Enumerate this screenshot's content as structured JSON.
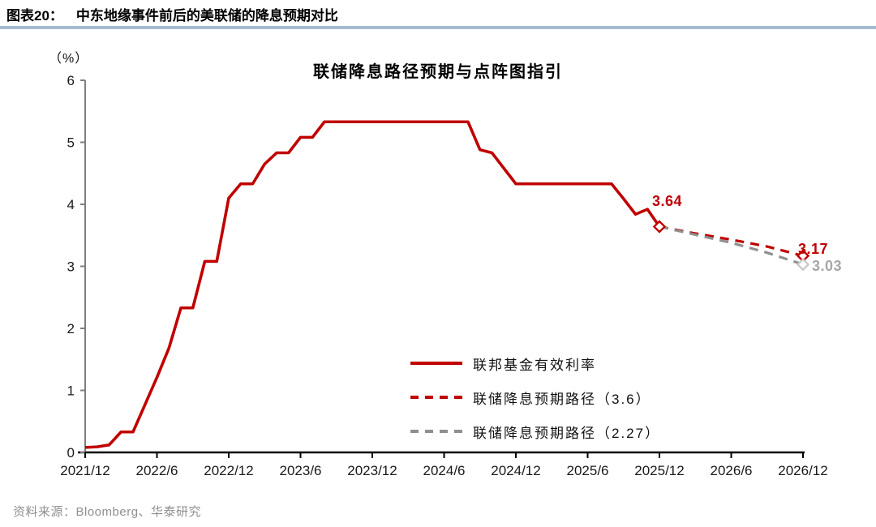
{
  "header": {
    "tag": "图表20：",
    "title": "中东地缘事件前后的美联储的降息预期对比"
  },
  "chart_data": {
    "type": "line",
    "title": "联储降息路径预期与点阵图指引",
    "y_unit": "（%）",
    "ylim": [
      0,
      6
    ],
    "y_ticks": [
      0,
      1,
      2,
      3,
      4,
      5,
      6
    ],
    "x_tick_months": [
      0,
      6,
      12,
      18,
      24,
      30,
      36,
      42,
      48,
      54,
      60
    ],
    "x_ticklabels": [
      "2021/12",
      "2022/6",
      "2022/12",
      "2023/6",
      "2023/12",
      "2024/6",
      "2024/12",
      "2025/6",
      "2025/12",
      "2026/6",
      "2026/12"
    ],
    "grid": false,
    "legend_position": "inside-bottom-right",
    "series": [
      {
        "name": "联邦基金有效利率",
        "color": "#C00000",
        "style": "solid",
        "points": [
          [
            0,
            0.08
          ],
          [
            1,
            0.09
          ],
          [
            2,
            0.12
          ],
          [
            3,
            0.33
          ],
          [
            4,
            0.33
          ],
          [
            5,
            0.77
          ],
          [
            6,
            1.21
          ],
          [
            7,
            1.68
          ],
          [
            8,
            2.33
          ],
          [
            9,
            2.33
          ],
          [
            10,
            3.08
          ],
          [
            11,
            3.08
          ],
          [
            12,
            4.1
          ],
          [
            13,
            4.33
          ],
          [
            14,
            4.33
          ],
          [
            15,
            4.65
          ],
          [
            16,
            4.83
          ],
          [
            17,
            4.83
          ],
          [
            18,
            5.08
          ],
          [
            19,
            5.08
          ],
          [
            20,
            5.33
          ],
          [
            32,
            5.33
          ],
          [
            33,
            4.88
          ],
          [
            34,
            4.83
          ],
          [
            35,
            4.58
          ],
          [
            36,
            4.33
          ],
          [
            44,
            4.33
          ],
          [
            45,
            4.09
          ],
          [
            46,
            3.84
          ],
          [
            47,
            3.92
          ],
          [
            48,
            3.64
          ]
        ]
      },
      {
        "name": "联储降息预期路径（3.6）",
        "color": "#C00000",
        "style": "dashed",
        "points": [
          [
            48,
            3.64
          ],
          [
            51,
            3.53
          ],
          [
            54,
            3.43
          ],
          [
            57,
            3.32
          ],
          [
            60,
            3.17
          ]
        ]
      },
      {
        "name": "联储降息预期路径（2.27）",
        "color": "#8F8F8F",
        "style": "dashed",
        "points": [
          [
            48,
            3.64
          ],
          [
            51,
            3.51
          ],
          [
            54,
            3.38
          ],
          [
            57,
            3.22
          ],
          [
            60,
            3.03
          ]
        ]
      }
    ],
    "markers": [
      {
        "m": 48,
        "v": 3.64,
        "color": "#C00000"
      },
      {
        "m": 60,
        "v": 3.17,
        "color": "#C00000"
      },
      {
        "m": 60,
        "v": 3.03,
        "color": "#CACACA"
      }
    ],
    "point_labels": {
      "last_actual": "3.64",
      "red_path_end": "3.17",
      "gray_path_end": "3.03"
    }
  },
  "source": {
    "text": "资料来源：Bloomberg、华泰研究"
  }
}
